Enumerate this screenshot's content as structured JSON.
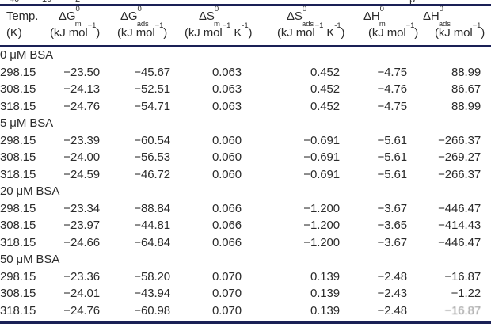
{
  "colors": {
    "rule": "#1a2056",
    "text": "#2b2b2b",
    "background": "#ffffff"
  },
  "cropped_caption_fragments": [
    "40",
    "10",
    "2",
    "p"
  ],
  "table": {
    "header": {
      "columns": [
        {
          "symbol": "Temp.",
          "unit": "(K)"
        },
        {
          "symbol": "ΔG^{0}_{m}",
          "unit": "(kJ mol^{−1})"
        },
        {
          "symbol": "ΔG^{0}_{ads}",
          "unit": "(kJ mol^{−1})"
        },
        {
          "symbol": "ΔS^{0}_{m}",
          "unit": "(kJ mol^{−1} K^{-1})"
        },
        {
          "symbol": "ΔS^{0}_{ads}",
          "unit": "(kJ mol^{−1} K^{-1})"
        },
        {
          "symbol": "ΔH^{0}_{m}",
          "unit": "(kJ mol^{−1})"
        },
        {
          "symbol": "ΔH^{0}_{ads}",
          "unit": "(kJ mol^{−1})"
        }
      ]
    },
    "sections": [
      {
        "label": "0 μM BSA",
        "rows": [
          {
            "values": [
              "298.15",
              "−23.50",
              "−45.67",
              "0.063",
              "0.452",
              "−4.75",
              "88.99"
            ]
          },
          {
            "values": [
              "308.15",
              "−24.13",
              "−52.51",
              "0.063",
              "0.452",
              "−4.76",
              "86.67"
            ]
          },
          {
            "values": [
              "318.15",
              "−24.76",
              "−54.71",
              "0.063",
              "0.452",
              "−4.75",
              "88.99"
            ]
          }
        ]
      },
      {
        "label": "5 μM BSA",
        "rows": [
          {
            "values": [
              "298.15",
              "−23.39",
              "−60.54",
              "0.060",
              "−0.691",
              "−5.61",
              "−266.37"
            ]
          },
          {
            "values": [
              "308.15",
              "−24.00",
              "−56.53",
              "0.060",
              "−0.691",
              "−5.61",
              "−269.27"
            ]
          },
          {
            "values": [
              "318.15",
              "−24.59",
              "−46.72",
              "0.060",
              "−0.691",
              "−5.61",
              "−266.37"
            ]
          }
        ]
      },
      {
        "label": "20 μM BSA",
        "rows": [
          {
            "values": [
              "298.15",
              "−23.34",
              "−88.84",
              "0.066",
              "−1.200",
              "−3.67",
              "−446.47"
            ]
          },
          {
            "values": [
              "308.15",
              "−23.97",
              "−44.81",
              "0.066",
              "−1.200",
              "−3.65",
              "−414.43"
            ]
          },
          {
            "values": [
              "318.15",
              "−24.66",
              "−64.84",
              "0.066",
              "−1.200",
              "−3.67",
              "−446.47"
            ]
          }
        ]
      },
      {
        "label": "50 μM BSA",
        "rows": [
          {
            "values": [
              "298.15",
              "−23.36",
              "−58.20",
              "0.070",
              "0.139",
              "−2.48",
              "−16.87"
            ]
          },
          {
            "values": [
              "308.15",
              "−24.01",
              "−43.94",
              "0.070",
              "0.139",
              "−2.43",
              "−1.22"
            ]
          },
          {
            "values": [
              "318.15",
              "−24.76",
              "−60.98",
              "0.070",
              "0.139",
              "−2.48",
              "−16.87"
            ],
            "faded_cells": [
              6
            ]
          }
        ]
      }
    ]
  }
}
